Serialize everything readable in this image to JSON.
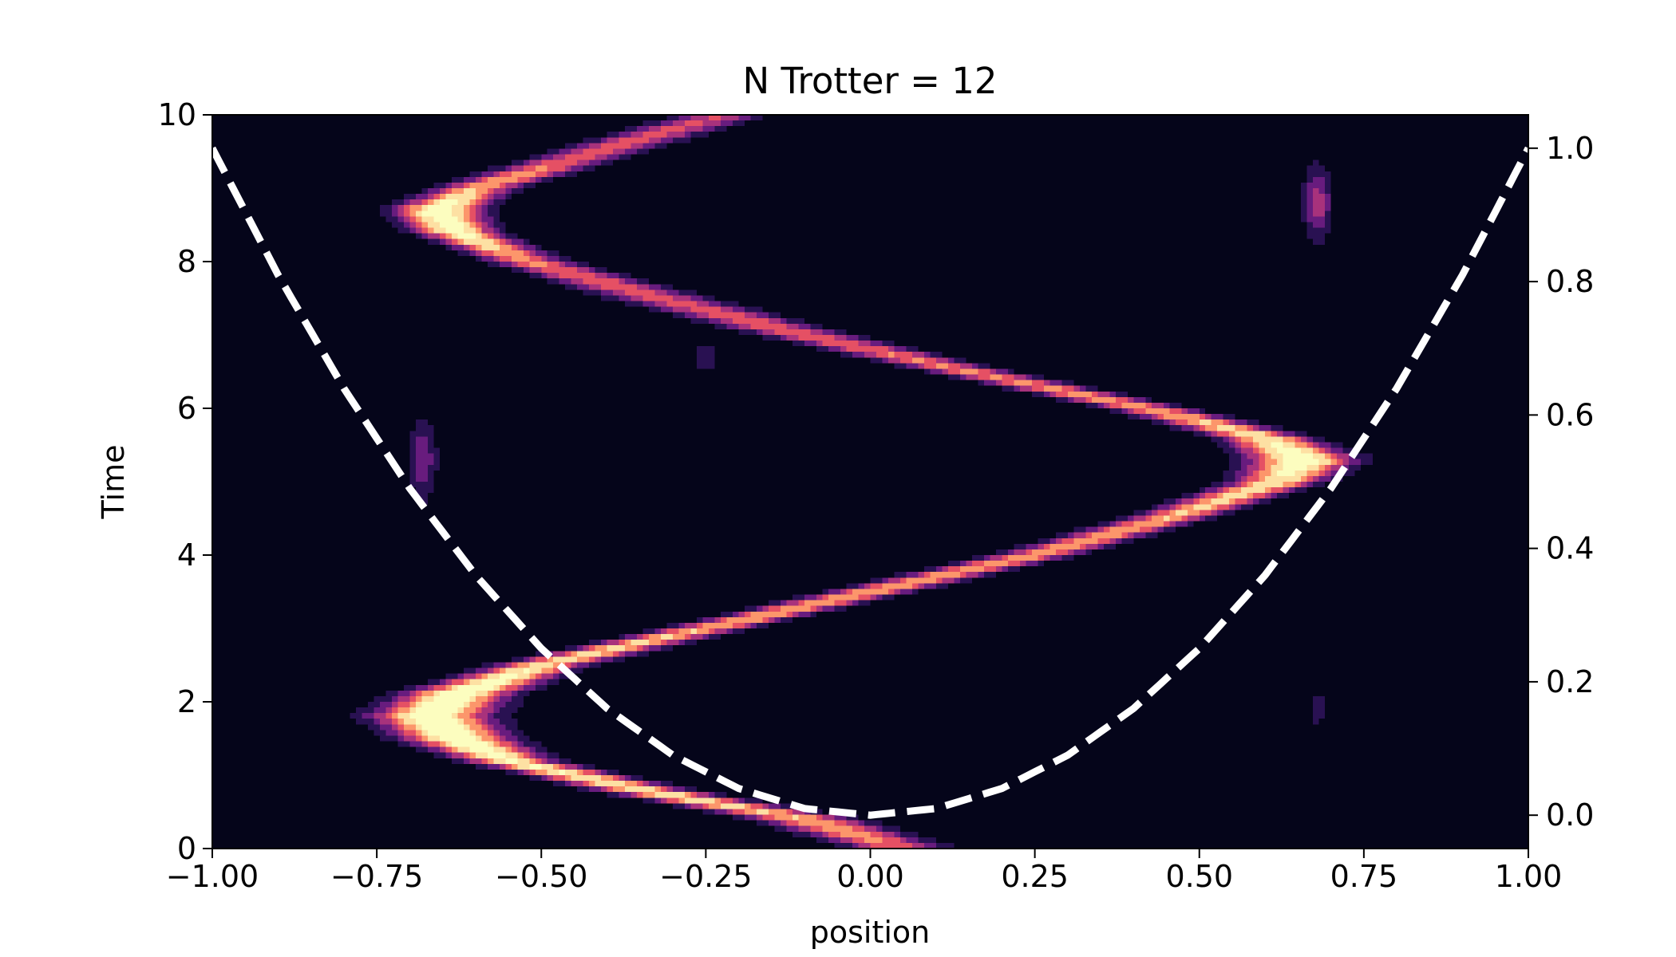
{
  "chart_data": {
    "type": "heatmap",
    "title": "N Trotter = 12",
    "xlabel": "position",
    "ylabel": "Time",
    "xlim": [
      -1.0,
      1.0
    ],
    "ylim": [
      0,
      10
    ],
    "y2lim": [
      -0.05,
      1.05
    ],
    "x_ticks": [
      -1.0,
      -0.75,
      -0.5,
      -0.25,
      0.0,
      0.25,
      0.5,
      0.75,
      1.0
    ],
    "x_tick_labels": [
      "−1.00",
      "−0.75",
      "−0.50",
      "−0.25",
      "0.00",
      "0.25",
      "0.50",
      "0.75",
      "1.00"
    ],
    "y_ticks": [
      0,
      2,
      4,
      6,
      8,
      10
    ],
    "y_tick_labels": [
      "0",
      "2",
      "4",
      "6",
      "8",
      "10"
    ],
    "y2_ticks": [
      0.0,
      0.2,
      0.4,
      0.6,
      0.8,
      1.0
    ],
    "y2_tick_labels": [
      "0.0",
      "0.2",
      "0.4",
      "0.6",
      "0.8",
      "1.0"
    ],
    "colormap": "magma",
    "colors": {
      "background": "#05051a",
      "potential_line": "#ffffff"
    },
    "grid": false,
    "wavepacket_path": {
      "t": [
        0.0,
        0.4,
        0.8,
        1.2,
        1.5,
        1.8,
        2.1,
        2.5,
        3.0,
        3.5,
        4.0,
        4.5,
        5.0,
        5.3,
        5.6,
        6.0,
        6.5,
        7.0,
        7.5,
        8.0,
        8.4,
        8.7,
        9.0,
        9.4,
        9.8,
        10.0
      ],
      "x": [
        0.05,
        -0.1,
        -0.35,
        -0.55,
        -0.63,
        -0.67,
        -0.63,
        -0.5,
        -0.25,
        0.0,
        0.25,
        0.45,
        0.62,
        0.66,
        0.6,
        0.42,
        0.15,
        -0.1,
        -0.32,
        -0.52,
        -0.63,
        -0.66,
        -0.6,
        -0.45,
        -0.3,
        -0.22
      ],
      "amplitude": [
        0.6,
        0.75,
        0.85,
        0.9,
        1.0,
        1.0,
        1.0,
        0.85,
        0.75,
        0.75,
        0.7,
        0.75,
        0.85,
        1.0,
        0.85,
        0.7,
        0.65,
        0.6,
        0.55,
        0.65,
        0.95,
        1.0,
        0.75,
        0.6,
        0.55,
        0.5
      ],
      "width": [
        0.05,
        0.05,
        0.045,
        0.045,
        0.055,
        0.06,
        0.055,
        0.045,
        0.04,
        0.04,
        0.04,
        0.04,
        0.045,
        0.055,
        0.045,
        0.04,
        0.04,
        0.045,
        0.05,
        0.04,
        0.04,
        0.045,
        0.04,
        0.045,
        0.045,
        0.045
      ]
    },
    "secondary_blobs": [
      {
        "x": 0.68,
        "t": 8.8,
        "sx": 0.015,
        "st": 0.35,
        "amp": 0.45
      },
      {
        "x": -0.68,
        "t": 5.3,
        "sx": 0.015,
        "st": 0.4,
        "amp": 0.35
      },
      {
        "x": 0.68,
        "t": 1.9,
        "sx": 0.012,
        "st": 0.2,
        "amp": 0.2
      },
      {
        "x": -0.25,
        "t": 6.7,
        "sx": 0.03,
        "st": 0.25,
        "amp": 0.15
      }
    ],
    "series": [
      {
        "type": "line",
        "style": "dashed",
        "axis": "right",
        "x": [
          -1.0,
          -0.9,
          -0.8,
          -0.7,
          -0.6,
          -0.5,
          -0.4,
          -0.3,
          -0.2,
          -0.1,
          0.0,
          0.1,
          0.2,
          0.3,
          0.4,
          0.5,
          0.6,
          0.7,
          0.8,
          0.9,
          1.0
        ],
        "y": [
          1.0,
          0.81,
          0.64,
          0.49,
          0.36,
          0.25,
          0.16,
          0.09,
          0.04,
          0.01,
          0.0,
          0.01,
          0.04,
          0.09,
          0.16,
          0.25,
          0.36,
          0.49,
          0.64,
          0.81,
          1.0
        ]
      }
    ]
  }
}
